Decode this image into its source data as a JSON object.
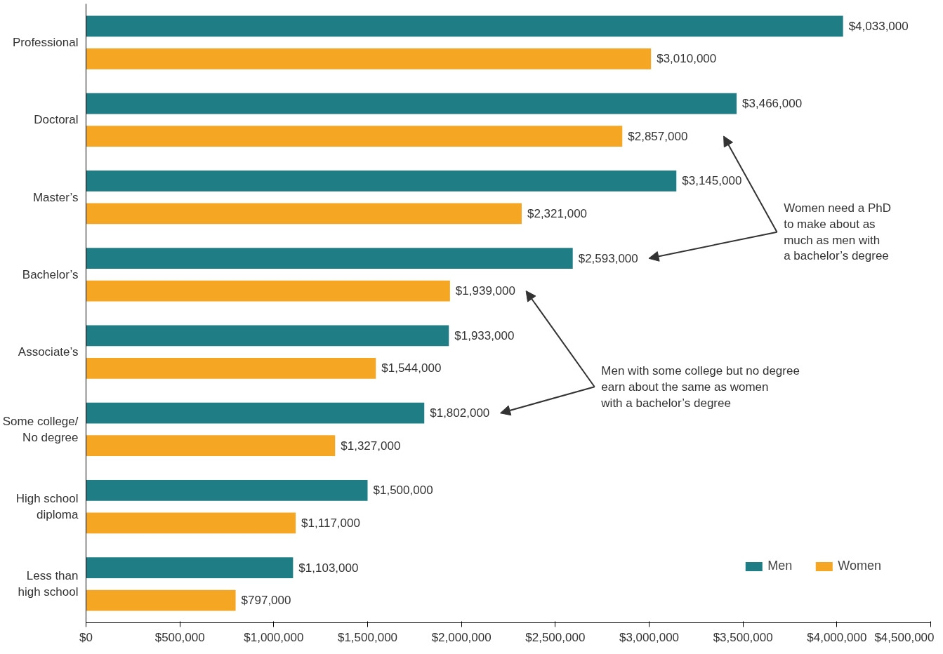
{
  "chart_data": {
    "type": "bar",
    "orientation": "horizontal",
    "categories": [
      "Professional",
      "Doctoral",
      "Master’s",
      "Bachelor’s",
      "Associate’s",
      "Some college/\nNo degree",
      "High school\ndiploma",
      "Less than\nhigh school"
    ],
    "series": [
      {
        "name": "Men",
        "color": "#1f7d85",
        "values": [
          4033000,
          3466000,
          3145000,
          2593000,
          1933000,
          1802000,
          1500000,
          1103000
        ],
        "value_labels": [
          "$4,033,000",
          "$3,466,000",
          "$3,145,000",
          "$2,593,000",
          "$1,933,000",
          "$1,802,000",
          "$1,500,000",
          "$1,103,000"
        ]
      },
      {
        "name": "Women",
        "color": "#f5a623",
        "values": [
          3010000,
          2857000,
          2321000,
          1939000,
          1544000,
          1327000,
          1117000,
          797000
        ],
        "value_labels": [
          "$3,010,000",
          "$2,857,000",
          "$2,321,000",
          "$1,939,000",
          "$1,544,000",
          "$1,327,000",
          "$1,117,000",
          "$797,000"
        ]
      }
    ],
    "xlim": [
      0,
      4500000
    ],
    "xticks": [
      {
        "value": 0,
        "label": "$0"
      },
      {
        "value": 500000,
        "label": "$500,000"
      },
      {
        "value": 1000000,
        "label": "$1,000,000"
      },
      {
        "value": 1500000,
        "label": "$1,500,000"
      },
      {
        "value": 2000000,
        "label": "$2,000,000"
      },
      {
        "value": 2500000,
        "label": "$2,500,000"
      },
      {
        "value": 3000000,
        "label": "$3,000,000"
      },
      {
        "value": 3500000,
        "label": "$3,500,000"
      },
      {
        "value": 4000000,
        "label": "$4,000,000"
      },
      {
        "value": 4500000,
        "label": "$4,500,000"
      }
    ],
    "annotations": [
      "Women need a PhD\nto make about as\nmuch as men with\na bachelor’s degree",
      "Men with some college but no degree\nearn about the same as women\nwith a bachelor’s degree"
    ],
    "legend": "bottom right",
    "grid": false
  }
}
